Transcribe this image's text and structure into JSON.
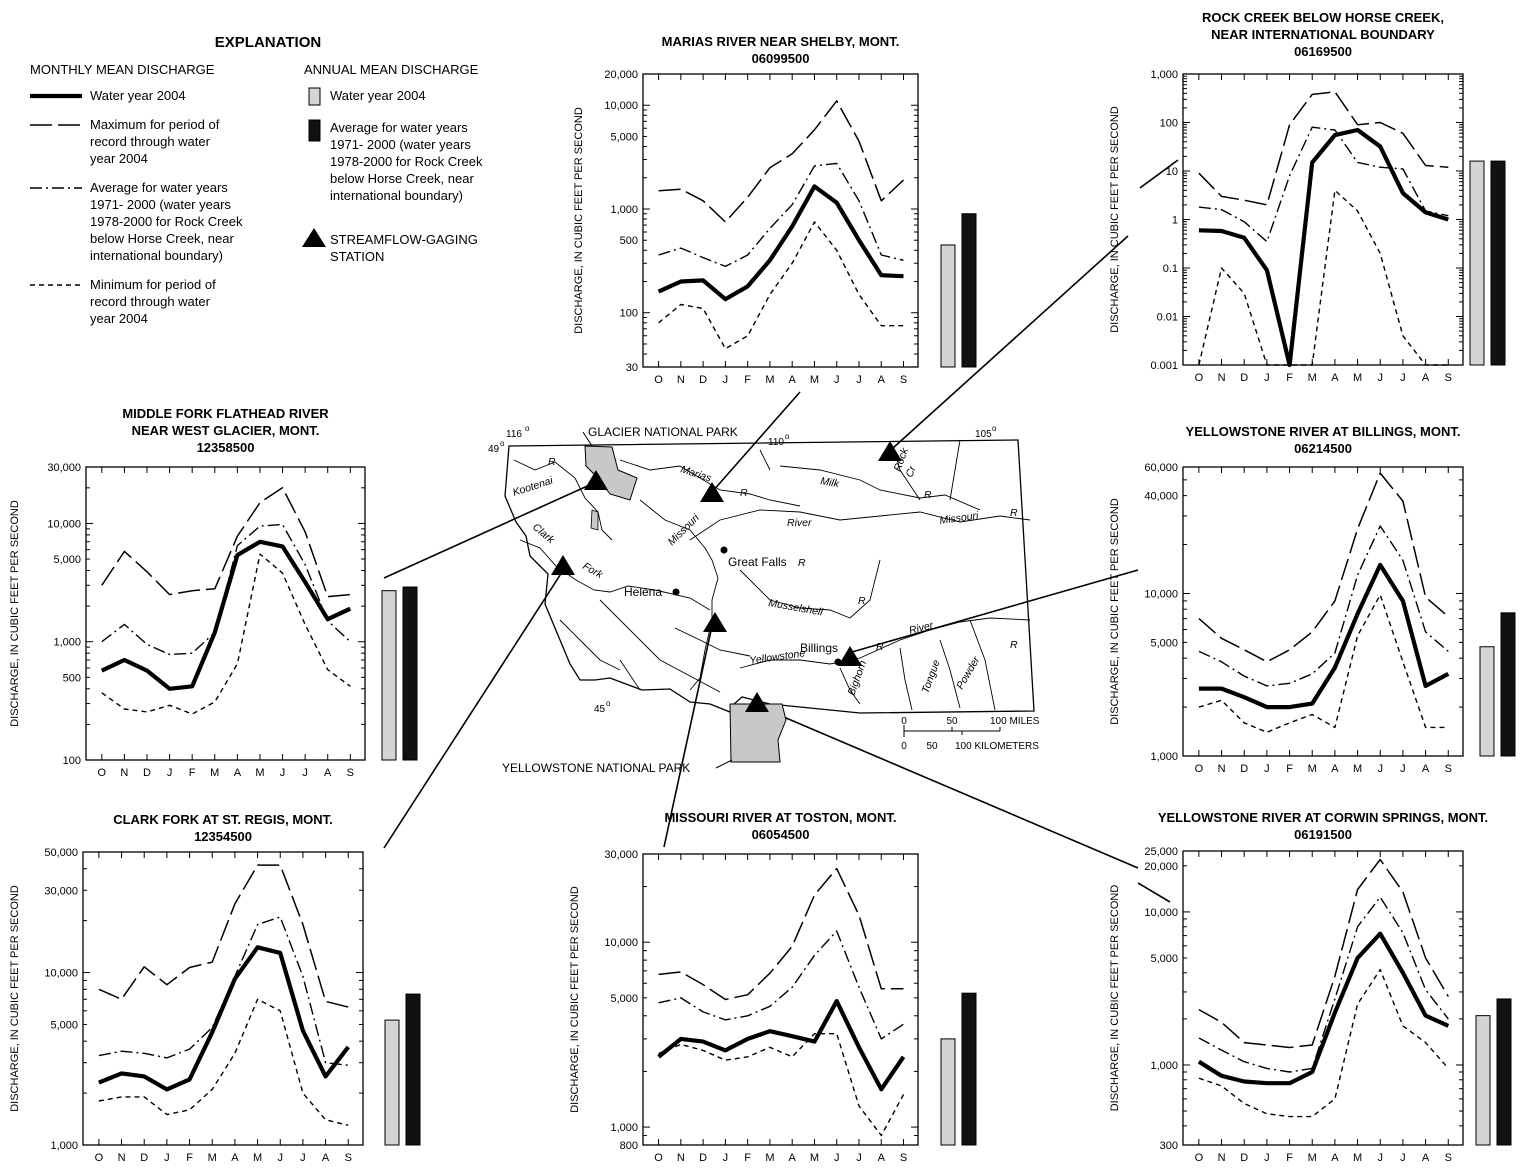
{
  "explanation": {
    "title": "EXPLANATION",
    "monthly_heading": "MONTHLY MEAN DISCHARGE",
    "monthly_items": [
      {
        "style": "wy",
        "lines": [
          "Water year 2004"
        ]
      },
      {
        "style": "max",
        "lines": [
          "Maximum for period of",
          " record through water",
          " year 2004"
        ]
      },
      {
        "style": "avg",
        "lines": [
          "Average for water years",
          " 1971- 2000 (water years",
          " 1978-2000 for Rock Creek",
          " below Horse Creek, near",
          " international boundary)"
        ]
      },
      {
        "style": "min",
        "lines": [
          "Minimum for period of",
          " record through water",
          " year 2004"
        ]
      }
    ],
    "annual_heading": "ANNUAL MEAN DISCHARGE",
    "annual_items": [
      {
        "style": "wy-bar",
        "lines": [
          "Water year 2004"
        ]
      },
      {
        "style": "avg-bar",
        "lines": [
          "Average for water years",
          " 1971- 2000 (water years",
          " 1978-2000 for Rock Creek",
          " below Horse Creek, near",
          " international boundary)"
        ]
      },
      {
        "style": "station",
        "lines": [
          "STREAMFLOW-GAGING",
          " STATION"
        ]
      }
    ]
  },
  "series_styles": {
    "wy": "solid-heavy",
    "max": "long-dash",
    "avg": "dash-dot",
    "min": "short-dash"
  },
  "colors": {
    "water_year_bar": "#d4d4d4",
    "average_bar": "#111111",
    "park_fill": "#c8c8c8",
    "line": "#000000"
  },
  "ylabel": "DISCHARGE, IN CUBIC FEET PER SECOND",
  "months": [
    "O",
    "N",
    "D",
    "J",
    "F",
    "M",
    "A",
    "M",
    "J",
    "J",
    "A",
    "S"
  ],
  "map": {
    "parks": [
      "GLACIER NATIONAL PARK",
      "YELLOWSTONE NATIONAL PARK"
    ],
    "cities": [
      "Great Falls",
      "Helena",
      "Billings"
    ],
    "rivers": [
      "Kootenai",
      "R",
      "Clark",
      "Fork",
      "Marias",
      "R",
      "Missouri",
      "River",
      "Milk",
      "R",
      "Rock",
      "Cr",
      "Missouri",
      "R",
      "R",
      "Musselshell",
      "R",
      "River",
      "Yellowstone",
      "Bighorn",
      "R",
      "Tongue",
      "Powder",
      "R"
    ],
    "graticule": [
      "116",
      "110",
      "105",
      "49",
      "45"
    ],
    "scale_miles": [
      "0",
      "50",
      "100 MILES"
    ],
    "scale_km": [
      "0",
      "50",
      "100 KILOMETERS"
    ]
  },
  "chart_data": [
    {
      "type": "line",
      "title": [
        "MARIAS RIVER NEAR SHELBY, MONT."
      ],
      "subtitle": "06099500",
      "yscale": "log",
      "ylim": [
        30,
        20000
      ],
      "yticks": [
        "20,000",
        "10,000",
        "5,000",
        "1,000",
        "500",
        "100",
        "30"
      ],
      "ytick_values": [
        20000,
        10000,
        5000,
        1000,
        500,
        100,
        30
      ],
      "categories": [
        "O",
        "N",
        "D",
        "J",
        "F",
        "M",
        "A",
        "M",
        "J",
        "J",
        "A",
        "S"
      ],
      "series": [
        {
          "role": "max",
          "values": [
            1500,
            1550,
            1200,
            750,
            1300,
            2500,
            3400,
            5800,
            11000,
            4500,
            1200,
            1900
          ]
        },
        {
          "role": "avg",
          "values": [
            360,
            420,
            340,
            280,
            360,
            650,
            1100,
            2600,
            2750,
            1200,
            360,
            320
          ]
        },
        {
          "role": "wy",
          "values": [
            160,
            200,
            205,
            135,
            180,
            320,
            680,
            1650,
            1150,
            500,
            230,
            225
          ]
        },
        {
          "role": "min",
          "values": [
            80,
            120,
            110,
            45,
            60,
            150,
            300,
            750,
            400,
            150,
            75,
            75
          ]
        }
      ],
      "bars": {
        "water_year": 450,
        "average": 900
      }
    },
    {
      "type": "line",
      "title": [
        "ROCK CREEK BELOW HORSE CREEK,",
        "NEAR INTERNATIONAL BOUNDARY"
      ],
      "subtitle": "06169500",
      "yscale": "log",
      "ylim": [
        0.001,
        1000
      ],
      "yticks": [
        "1,000",
        "100",
        "10",
        "1",
        "0.1",
        "0.01",
        "0.001"
      ],
      "ytick_values": [
        1000,
        100,
        10,
        1,
        0.1,
        0.01,
        0.001
      ],
      "categories": [
        "O",
        "N",
        "D",
        "J",
        "F",
        "M",
        "A",
        "M",
        "J",
        "J",
        "A",
        "S"
      ],
      "series": [
        {
          "role": "max",
          "values": [
            9,
            3,
            2.5,
            2,
            90,
            380,
            430,
            90,
            100,
            60,
            13,
            12
          ]
        },
        {
          "role": "avg",
          "values": [
            1.8,
            1.6,
            0.9,
            0.35,
            8,
            80,
            70,
            15,
            12,
            11,
            1.5,
            1.2
          ]
        },
        {
          "role": "wy",
          "values": [
            0.6,
            0.58,
            0.42,
            0.09,
            0.001,
            15,
            55,
            70,
            32,
            3.5,
            1.4,
            1.0
          ]
        },
        {
          "role": "min",
          "values": [
            0.001,
            0.1,
            0.03,
            0.001,
            0.001,
            0.001,
            4,
            1.5,
            0.2,
            0.004,
            0.001,
            0.001
          ]
        }
      ],
      "bars": {
        "water_year": 16,
        "average": 16
      }
    },
    {
      "type": "line",
      "title": [
        "MIDDLE FORK FLATHEAD RIVER",
        "NEAR WEST GLACIER, MONT."
      ],
      "subtitle": "12358500",
      "yscale": "log",
      "ylim": [
        100,
        30000
      ],
      "yticks": [
        "30,000",
        "10,000",
        "5,000",
        "1,000",
        "500",
        "100"
      ],
      "ytick_values": [
        30000,
        10000,
        5000,
        1000,
        500,
        100
      ],
      "categories": [
        "O",
        "N",
        "D",
        "J",
        "F",
        "M",
        "A",
        "M",
        "J",
        "J",
        "A",
        "S"
      ],
      "series": [
        {
          "role": "max",
          "values": [
            3000,
            5800,
            3900,
            2500,
            2700,
            2800,
            7800,
            15000,
            20000,
            8500,
            2400,
            2500
          ]
        },
        {
          "role": "avg",
          "values": [
            1000,
            1400,
            950,
            780,
            800,
            1200,
            6500,
            9500,
            9800,
            4500,
            1500,
            1000
          ]
        },
        {
          "role": "wy",
          "values": [
            570,
            700,
            570,
            400,
            420,
            1200,
            5400,
            7000,
            6400,
            3200,
            1550,
            1900
          ]
        },
        {
          "role": "min",
          "values": [
            370,
            270,
            255,
            290,
            245,
            310,
            650,
            5500,
            3800,
            1400,
            580,
            420
          ]
        }
      ],
      "bars": {
        "water_year": 2700,
        "average": 2900
      }
    },
    {
      "type": "line",
      "title": [
        "YELLOWSTONE RIVER AT BILLINGS, MONT."
      ],
      "subtitle": "06214500",
      "yscale": "log",
      "ylim": [
        1000,
        60000
      ],
      "yticks": [
        "60,000",
        "40,000",
        "10,000",
        "5,000",
        "1,000"
      ],
      "ytick_values": [
        60000,
        40000,
        10000,
        5000,
        1000
      ],
      "categories": [
        "O",
        "N",
        "D",
        "J",
        "F",
        "M",
        "A",
        "M",
        "J",
        "J",
        "A",
        "S"
      ],
      "series": [
        {
          "role": "max",
          "values": [
            7000,
            5300,
            4500,
            3800,
            4500,
            5800,
            9000,
            25000,
            55000,
            37000,
            9500,
            7200
          ]
        },
        {
          "role": "avg",
          "values": [
            4400,
            3800,
            3100,
            2700,
            2800,
            3200,
            4300,
            13000,
            26000,
            16000,
            5800,
            4400
          ]
        },
        {
          "role": "wy",
          "values": [
            2600,
            2600,
            2300,
            2000,
            2000,
            2100,
            3500,
            7500,
            15000,
            9000,
            2700,
            3200
          ]
        },
        {
          "role": "min",
          "values": [
            2000,
            2200,
            1600,
            1400,
            1600,
            1800,
            1500,
            5500,
            9800,
            3800,
            1500,
            1500
          ]
        }
      ],
      "bars": {
        "water_year": 4700,
        "average": 7600
      }
    },
    {
      "type": "line",
      "title": [
        "CLARK FORK AT ST. REGIS, MONT."
      ],
      "subtitle": "12354500",
      "yscale": "log",
      "ylim": [
        1000,
        50000
      ],
      "yticks": [
        "50,000",
        "30,000",
        "10,000",
        "5,000",
        "1,000"
      ],
      "ytick_values": [
        50000,
        30000,
        10000,
        5000,
        1000
      ],
      "categories": [
        "O",
        "N",
        "D",
        "J",
        "F",
        "M",
        "A",
        "M",
        "J",
        "J",
        "A",
        "S"
      ],
      "series": [
        {
          "role": "max",
          "values": [
            8000,
            7000,
            10800,
            8500,
            10700,
            11500,
            25000,
            42000,
            42000,
            19000,
            6800,
            6300
          ]
        },
        {
          "role": "avg",
          "values": [
            3300,
            3500,
            3400,
            3200,
            3600,
            4800,
            9500,
            19000,
            21000,
            9500,
            3000,
            2900
          ]
        },
        {
          "role": "wy",
          "values": [
            2300,
            2600,
            2500,
            2100,
            2400,
            4500,
            9200,
            14000,
            13000,
            4600,
            2500,
            3700
          ]
        },
        {
          "role": "min",
          "values": [
            1800,
            1900,
            1900,
            1500,
            1600,
            2100,
            3400,
            7000,
            6000,
            2000,
            1400,
            1300
          ]
        }
      ],
      "bars": {
        "water_year": 5300,
        "average": 7500
      }
    },
    {
      "type": "line",
      "title": [
        "MISSOURI RIVER AT TOSTON, MONT."
      ],
      "subtitle": "06054500",
      "yscale": "log",
      "ylim": [
        800,
        30000
      ],
      "yticks": [
        "30,000",
        "10,000",
        "5,000",
        "1,000",
        "800"
      ],
      "ytick_values": [
        30000,
        10000,
        5000,
        1000,
        800
      ],
      "categories": [
        "O",
        "N",
        "D",
        "J",
        "F",
        "M",
        "A",
        "M",
        "J",
        "J",
        "A",
        "S"
      ],
      "series": [
        {
          "role": "max",
          "values": [
            6700,
            6900,
            5900,
            4900,
            5200,
            6800,
            9500,
            18000,
            25000,
            14000,
            5600,
            5600
          ]
        },
        {
          "role": "avg",
          "values": [
            4700,
            5000,
            4200,
            3800,
            4000,
            4500,
            5700,
            8500,
            11500,
            5700,
            3000,
            3600
          ]
        },
        {
          "role": "wy",
          "values": [
            2400,
            3000,
            2900,
            2600,
            3000,
            3300,
            3100,
            2900,
            4800,
            2700,
            1600,
            2400
          ]
        },
        {
          "role": "min",
          "values": [
            2500,
            2800,
            2600,
            2300,
            2400,
            2700,
            2400,
            3200,
            3200,
            1300,
            900,
            1500
          ]
        }
      ],
      "bars": {
        "water_year": 3000,
        "average": 5300
      }
    },
    {
      "type": "line",
      "title": [
        "YELLOWSTONE RIVER AT CORWIN SPRINGS, MONT."
      ],
      "subtitle": "06191500",
      "yscale": "log",
      "ylim": [
        300,
        25000
      ],
      "yticks": [
        "25,000",
        "20,000",
        "10,000",
        "5,000",
        "1,000",
        "300"
      ],
      "ytick_values": [
        25000,
        20000,
        10000,
        5000,
        1000,
        300
      ],
      "categories": [
        "O",
        "N",
        "D",
        "J",
        "F",
        "M",
        "A",
        "M",
        "J",
        "J",
        "A",
        "S"
      ],
      "series": [
        {
          "role": "max",
          "values": [
            2300,
            1900,
            1400,
            1350,
            1300,
            1350,
            3800,
            14000,
            22000,
            13500,
            5000,
            2800
          ]
        },
        {
          "role": "avg",
          "values": [
            1500,
            1250,
            1050,
            950,
            900,
            950,
            2700,
            8000,
            12500,
            7300,
            3100,
            2000
          ]
        },
        {
          "role": "wy",
          "values": [
            1050,
            850,
            780,
            760,
            760,
            900,
            2200,
            5000,
            7200,
            4000,
            2100,
            1800
          ]
        },
        {
          "role": "min",
          "values": [
            820,
            730,
            560,
            480,
            460,
            460,
            600,
            2500,
            4200,
            1800,
            1400,
            950
          ]
        }
      ],
      "bars": {
        "water_year": 2100,
        "average": 2700
      }
    }
  ]
}
